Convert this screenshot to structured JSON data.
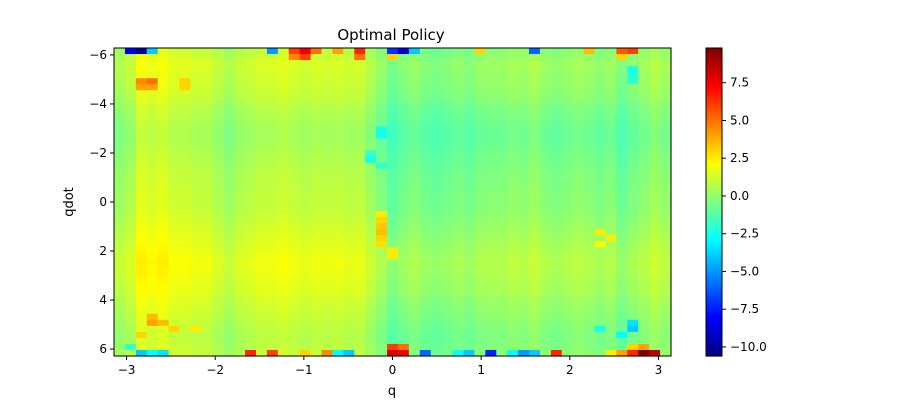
{
  "chart_data": {
    "type": "heatmap",
    "title": "Optimal Policy",
    "xlabel": "q",
    "ylabel": "qdot",
    "xlim": [
      -3.1416,
      3.1416
    ],
    "ylim": [
      -6.283,
      6.283
    ],
    "y_inverted": true,
    "x_ticks": [
      {
        "value": -3,
        "label": "−3"
      },
      {
        "value": -2,
        "label": "−2"
      },
      {
        "value": -1,
        "label": "−1"
      },
      {
        "value": 0,
        "label": "0"
      },
      {
        "value": 1,
        "label": "1"
      },
      {
        "value": 2,
        "label": "2"
      },
      {
        "value": 3,
        "label": "3"
      }
    ],
    "y_ticks": [
      {
        "value": -6,
        "label": "−6"
      },
      {
        "value": -4,
        "label": "−4"
      },
      {
        "value": -2,
        "label": "−2"
      },
      {
        "value": 0,
        "label": "0"
      },
      {
        "value": 2,
        "label": "2"
      },
      {
        "value": 4,
        "label": "4"
      },
      {
        "value": 6,
        "label": "6"
      }
    ],
    "colorbar": {
      "colormap": "jet",
      "range": [
        -10.6,
        9.8
      ],
      "ticks": [
        {
          "value": 7.5,
          "label": "7.5"
        },
        {
          "value": 5.0,
          "label": "5.0"
        },
        {
          "value": 2.5,
          "label": "2.5"
        },
        {
          "value": 0.0,
          "label": "0.0"
        },
        {
          "value": -2.5,
          "label": "−2.5"
        },
        {
          "value": -5.0,
          "label": "−5.0"
        },
        {
          "value": -7.5,
          "label": "−7.5"
        },
        {
          "value": -10.0,
          "label": "−10.0"
        }
      ]
    },
    "grid": {
      "nx": 51,
      "ny": 51,
      "column_base": [
        0.2,
        0.6,
        1.6,
        1.4,
        1.6,
        1.2,
        1.2,
        1.0,
        1.0,
        0.6,
        0.2,
        0.6,
        0.8,
        1.0,
        1.0,
        1.2,
        1.0,
        0.8,
        1.0,
        0.9,
        1.0,
        0.8,
        0.9,
        0.3,
        -0.3,
        -1.0,
        -0.6,
        -0.3,
        -0.6,
        -0.8,
        -0.6,
        -0.4,
        -0.6,
        -0.3,
        -0.2,
        -0.2,
        0.0,
        -0.1,
        0.2,
        -0.2,
        -0.4,
        -0.2,
        0.0,
        -0.2,
        -0.4,
        -0.2,
        -0.8,
        -0.4,
        -0.1,
        0.3,
        0.0
      ],
      "row_profile": [
        0.0,
        0.2,
        0.4,
        0.4,
        0.3,
        0.3,
        0.2,
        0.1,
        0.0,
        -0.2,
        -0.3,
        -0.4,
        -0.5,
        -0.6,
        -0.6,
        -0.6,
        -0.5,
        -0.4,
        -0.4,
        -0.3,
        -0.2,
        -0.2,
        -0.1,
        -0.1,
        0.0,
        0.0,
        0.0,
        0.1,
        0.2,
        0.3,
        0.4,
        0.5,
        0.6,
        0.7,
        0.8,
        0.9,
        0.8,
        0.8,
        0.7,
        0.6,
        0.6,
        0.4,
        0.3,
        0.2,
        0.1,
        0.0,
        -0.1,
        -0.2,
        -0.2,
        -0.1,
        0.0
      ],
      "overrides": [
        {
          "r": 0,
          "c": 1,
          "v": -8.5
        },
        {
          "r": 0,
          "c": 2,
          "v": -10.0
        },
        {
          "r": 0,
          "c": 3,
          "v": -4.0
        },
        {
          "r": 0,
          "c": 14,
          "v": -5.0
        },
        {
          "r": 0,
          "c": 16,
          "v": 6.0
        },
        {
          "r": 0,
          "c": 17,
          "v": 7.5
        },
        {
          "r": 0,
          "c": 18,
          "v": 5.0
        },
        {
          "r": 0,
          "c": 20,
          "v": 4.0
        },
        {
          "r": 0,
          "c": 22,
          "v": 6.5
        },
        {
          "r": 0,
          "c": 25,
          "v": -7.0
        },
        {
          "r": 0,
          "c": 26,
          "v": -9.0
        },
        {
          "r": 0,
          "c": 27,
          "v": -4.0
        },
        {
          "r": 0,
          "c": 33,
          "v": 3.0
        },
        {
          "r": 0,
          "c": 38,
          "v": -6.0
        },
        {
          "r": 0,
          "c": 43,
          "v": 3.5
        },
        {
          "r": 0,
          "c": 46,
          "v": 5.5
        },
        {
          "r": 0,
          "c": 47,
          "v": 6.0
        },
        {
          "r": 1,
          "c": 16,
          "v": 4.5
        },
        {
          "r": 1,
          "c": 17,
          "v": 6.0
        },
        {
          "r": 1,
          "c": 22,
          "v": 5.0
        },
        {
          "r": 1,
          "c": 25,
          "v": 3.0
        },
        {
          "r": 1,
          "c": 46,
          "v": 3.0
        },
        {
          "r": 5,
          "c": 2,
          "v": 4.5
        },
        {
          "r": 5,
          "c": 3,
          "v": 5.0
        },
        {
          "r": 6,
          "c": 2,
          "v": 4.0
        },
        {
          "r": 6,
          "c": 3,
          "v": 4.0
        },
        {
          "r": 5,
          "c": 6,
          "v": 3.0
        },
        {
          "r": 6,
          "c": 6,
          "v": 3.0
        },
        {
          "r": 3,
          "c": 47,
          "v": -2.5
        },
        {
          "r": 4,
          "c": 47,
          "v": -2.2
        },
        {
          "r": 5,
          "c": 47,
          "v": -2.0
        },
        {
          "r": 13,
          "c": 24,
          "v": -2.5
        },
        {
          "r": 14,
          "c": 24,
          "v": -2.5
        },
        {
          "r": 17,
          "c": 23,
          "v": -2.0
        },
        {
          "r": 18,
          "c": 23,
          "v": -2.5
        },
        {
          "r": 19,
          "c": 24,
          "v": -2.0
        },
        {
          "r": 27,
          "c": 24,
          "v": 2.5
        },
        {
          "r": 28,
          "c": 24,
          "v": 3.0
        },
        {
          "r": 29,
          "c": 24,
          "v": 3.2
        },
        {
          "r": 30,
          "c": 24,
          "v": 3.5
        },
        {
          "r": 31,
          "c": 24,
          "v": 3.0
        },
        {
          "r": 32,
          "c": 24,
          "v": 2.8
        },
        {
          "r": 33,
          "c": 25,
          "v": 2.5
        },
        {
          "r": 34,
          "c": 25,
          "v": 2.5
        },
        {
          "r": 30,
          "c": 44,
          "v": 2.5
        },
        {
          "r": 31,
          "c": 45,
          "v": 2.5
        },
        {
          "r": 32,
          "c": 44,
          "v": 2.2
        },
        {
          "r": 44,
          "c": 3,
          "v": 3.5
        },
        {
          "r": 45,
          "c": 3,
          "v": 4.0
        },
        {
          "r": 45,
          "c": 4,
          "v": 3.5
        },
        {
          "r": 46,
          "c": 5,
          "v": 3.0
        },
        {
          "r": 47,
          "c": 2,
          "v": 3.0
        },
        {
          "r": 46,
          "c": 7,
          "v": 2.5
        },
        {
          "r": 45,
          "c": 47,
          "v": -3.5
        },
        {
          "r": 46,
          "c": 47,
          "v": -4.0
        },
        {
          "r": 47,
          "c": 46,
          "v": -3.0
        },
        {
          "r": 46,
          "c": 44,
          "v": -2.5
        },
        {
          "r": 49,
          "c": 25,
          "v": 6.0
        },
        {
          "r": 49,
          "c": 26,
          "v": 5.0
        },
        {
          "r": 49,
          "c": 1,
          "v": -2.0
        },
        {
          "r": 49,
          "c": 48,
          "v": 4.0
        },
        {
          "r": 49,
          "c": 47,
          "v": 3.0
        },
        {
          "r": 50,
          "c": 2,
          "v": -4.0
        },
        {
          "r": 50,
          "c": 3,
          "v": -3.0
        },
        {
          "r": 50,
          "c": 4,
          "v": -3.5
        },
        {
          "r": 50,
          "c": 12,
          "v": 6.5
        },
        {
          "r": 50,
          "c": 14,
          "v": 6.0
        },
        {
          "r": 50,
          "c": 17,
          "v": 3.0
        },
        {
          "r": 50,
          "c": 19,
          "v": 4.5
        },
        {
          "r": 50,
          "c": 20,
          "v": -3.0
        },
        {
          "r": 50,
          "c": 21,
          "v": -4.0
        },
        {
          "r": 50,
          "c": 25,
          "v": 8.0
        },
        {
          "r": 50,
          "c": 26,
          "v": 7.5
        },
        {
          "r": 50,
          "c": 28,
          "v": -6.0
        },
        {
          "r": 50,
          "c": 31,
          "v": -3.0
        },
        {
          "r": 50,
          "c": 32,
          "v": -4.0
        },
        {
          "r": 50,
          "c": 34,
          "v": -7.5
        },
        {
          "r": 50,
          "c": 36,
          "v": -3.0
        },
        {
          "r": 50,
          "c": 37,
          "v": -5.0
        },
        {
          "r": 50,
          "c": 38,
          "v": -4.0
        },
        {
          "r": 50,
          "c": 40,
          "v": 6.5
        },
        {
          "r": 50,
          "c": 45,
          "v": 2.5
        },
        {
          "r": 50,
          "c": 46,
          "v": 4.0
        },
        {
          "r": 50,
          "c": 47,
          "v": 6.5
        },
        {
          "r": 50,
          "c": 48,
          "v": 9.8
        },
        {
          "r": 50,
          "c": 49,
          "v": 8.5
        }
      ]
    }
  }
}
